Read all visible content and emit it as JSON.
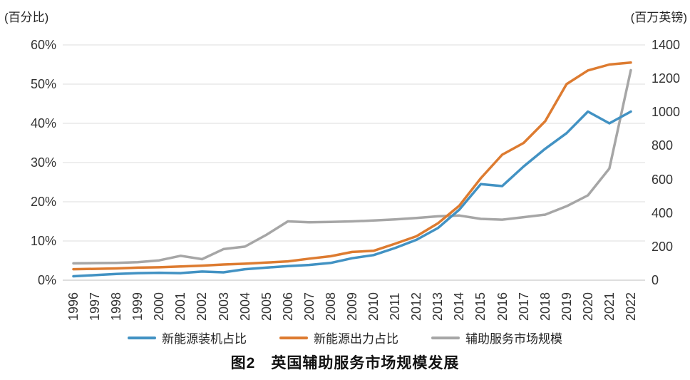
{
  "units": {
    "left": "(百分比)",
    "right": "(百万英镑)"
  },
  "title": "图2　英国辅助服务市场规模发展",
  "legend": {
    "items": [
      {
        "id": "installed-share",
        "label": "新能源装机占比",
        "color": "#4292c3"
      },
      {
        "id": "output-share",
        "label": "新能源出力占比",
        "color": "#dd7b30"
      },
      {
        "id": "market-size",
        "label": "辅助服务市场规模",
        "color": "#a6a6a6"
      }
    ]
  },
  "chart_data": {
    "type": "line",
    "title": "图2　英国辅助服务市场规模发展",
    "x": [
      1996,
      1997,
      1998,
      1999,
      2000,
      2001,
      2002,
      2003,
      2004,
      2005,
      2006,
      2007,
      2008,
      2009,
      2010,
      2011,
      2012,
      2013,
      2014,
      2015,
      2016,
      2017,
      2018,
      2019,
      2020,
      2021,
      2022
    ],
    "series": [
      {
        "name": "新能源装机占比",
        "axis": "left",
        "unit": "%",
        "color": "#4292c3",
        "values": [
          1.0,
          1.3,
          1.6,
          1.8,
          1.9,
          1.8,
          2.2,
          2.0,
          2.8,
          3.2,
          3.6,
          3.9,
          4.4,
          5.6,
          6.4,
          8.2,
          10.3,
          13.3,
          18,
          24.5,
          24,
          29,
          33.5,
          37.5,
          43,
          40,
          43
        ]
      },
      {
        "name": "新能源出力占比",
        "axis": "left",
        "unit": "%",
        "color": "#dd7b30",
        "values": [
          2.8,
          2.9,
          3.0,
          3.2,
          3.3,
          3.5,
          3.7,
          4.0,
          4.2,
          4.5,
          4.8,
          5.5,
          6.1,
          7.2,
          7.5,
          9.3,
          11.2,
          14.5,
          19,
          26,
          32,
          35,
          40.5,
          50,
          53.5,
          55,
          55.5
        ]
      },
      {
        "name": "辅助服务市场规模",
        "axis": "right",
        "unit": "百万英镑",
        "color": "#a6a6a6",
        "values": [
          100,
          102,
          103,
          107,
          118,
          145,
          125,
          185,
          200,
          270,
          350,
          345,
          347,
          350,
          355,
          362,
          370,
          380,
          385,
          365,
          360,
          375,
          390,
          440,
          505,
          665,
          1250
        ]
      }
    ],
    "left_axis": {
      "label": "(百分比)",
      "min": 0,
      "max": 60,
      "ticks": [
        "60%",
        "50%",
        "40%",
        "30%",
        "20%",
        "10%",
        "0%"
      ]
    },
    "right_axis": {
      "label": "(百万英镑)",
      "min": 0,
      "max": 1400,
      "ticks": [
        "1400",
        "1200",
        "1000",
        "800",
        "600",
        "400",
        "200",
        "0"
      ]
    },
    "grid": true,
    "legend_position": "bottom",
    "grid_color": "#dcdcdc",
    "baseline_color": "#bdbdbd"
  }
}
